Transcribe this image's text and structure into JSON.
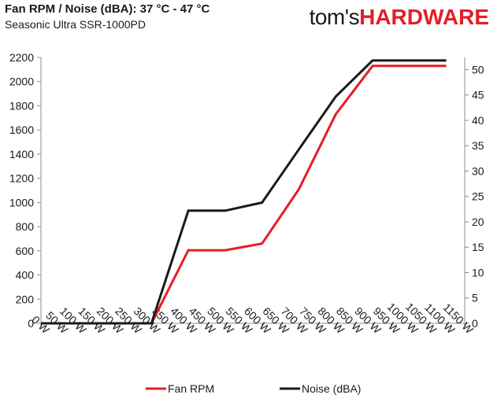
{
  "header": {
    "title": "Fan RPM / Noise (dBA): 37 °C - 47 °C",
    "subtitle": "Seasonic Ultra SSR-1000PD"
  },
  "logo": {
    "part1": "tom's",
    "part2": "HARDWARE"
  },
  "chart_data": {
    "type": "line",
    "title": "Fan RPM / Noise (dBA): 37 °C - 47 °C",
    "subtitle": "Seasonic Ultra SSR-1000PD",
    "categories": [
      "0 W",
      "50 W",
      "100 W",
      "150 W",
      "200 W",
      "250 W",
      "300 W",
      "350 W",
      "400 W",
      "450 W",
      "500 W",
      "550 W",
      "600 W",
      "650 W",
      "700 W",
      "750 W",
      "800 W",
      "850 W",
      "900 W",
      "950 W",
      "1000 W",
      "1050 W",
      "1100 W",
      "1150 W"
    ],
    "x": [
      0,
      100,
      200,
      300,
      400,
      500,
      600,
      700,
      800,
      900,
      1000,
      1100
    ],
    "series": [
      {
        "name": "Fan RPM",
        "axis": "left",
        "color": "#e41e26",
        "values": [
          0,
          0,
          0,
          0,
          605,
          605,
          660,
          1110,
          1730,
          2130,
          2130,
          2130
        ]
      },
      {
        "name": "Noise (dBA)",
        "axis": "right",
        "color": "#1a1a1a",
        "values": [
          0,
          0,
          0,
          0,
          22.2,
          22.2,
          23.8,
          34.3,
          44.7,
          51.8,
          51.8,
          51.8
        ]
      }
    ],
    "ylim_left": [
      0,
      2200
    ],
    "yticks_left": [
      "0",
      "200",
      "400",
      "600",
      "800",
      "1000",
      "1200",
      "1400",
      "1600",
      "1800",
      "2000",
      "2200"
    ],
    "ylim_right": [
      0,
      52.4
    ],
    "yticks_right": [
      "0",
      "5",
      "10",
      "15",
      "20",
      "25",
      "30",
      "35",
      "40",
      "45",
      "50"
    ],
    "grid": false,
    "legend_position": "bottom"
  }
}
